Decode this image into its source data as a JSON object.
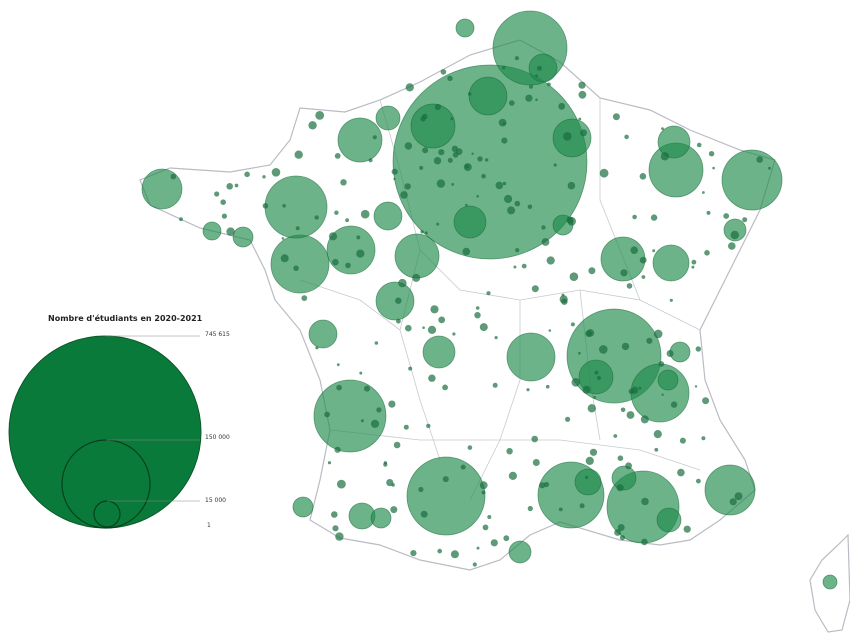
{
  "legend": {
    "title": "Nombre d'étudiants en 2020-2021",
    "values": [
      "745 615",
      "150 000",
      "15 000",
      "1"
    ]
  },
  "colors": {
    "bubble_fill": "#1f8a4c",
    "legend_fill": "#0a7a3a",
    "border": "#b9bcc4",
    "water": "#8fa6cf"
  }
}
